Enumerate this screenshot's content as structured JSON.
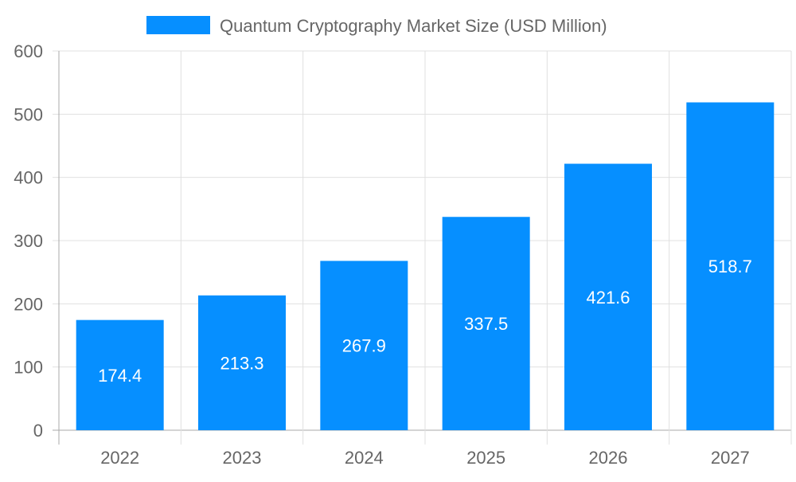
{
  "chart_data": {
    "type": "bar",
    "categories": [
      "2022",
      "2023",
      "2024",
      "2025",
      "2026",
      "2027"
    ],
    "series": [
      {
        "name": "Quantum Cryptography Market Size (USD Million)",
        "values": [
          174.4,
          213.3,
          267.9,
          337.5,
          421.6,
          518.7
        ]
      }
    ],
    "data_labels": [
      "174.4",
      "213.3",
      "267.9",
      "337.5",
      "421.6",
      "518.7"
    ],
    "yticks": [
      "0",
      "100",
      "200",
      "300",
      "400",
      "500",
      "600"
    ],
    "ylim": [
      0,
      600
    ],
    "grid": true,
    "legend": "top",
    "colors": {
      "bar": "#068fff",
      "grid": "#e0e0e0",
      "text": "#666666",
      "label": "#ffffff"
    }
  }
}
